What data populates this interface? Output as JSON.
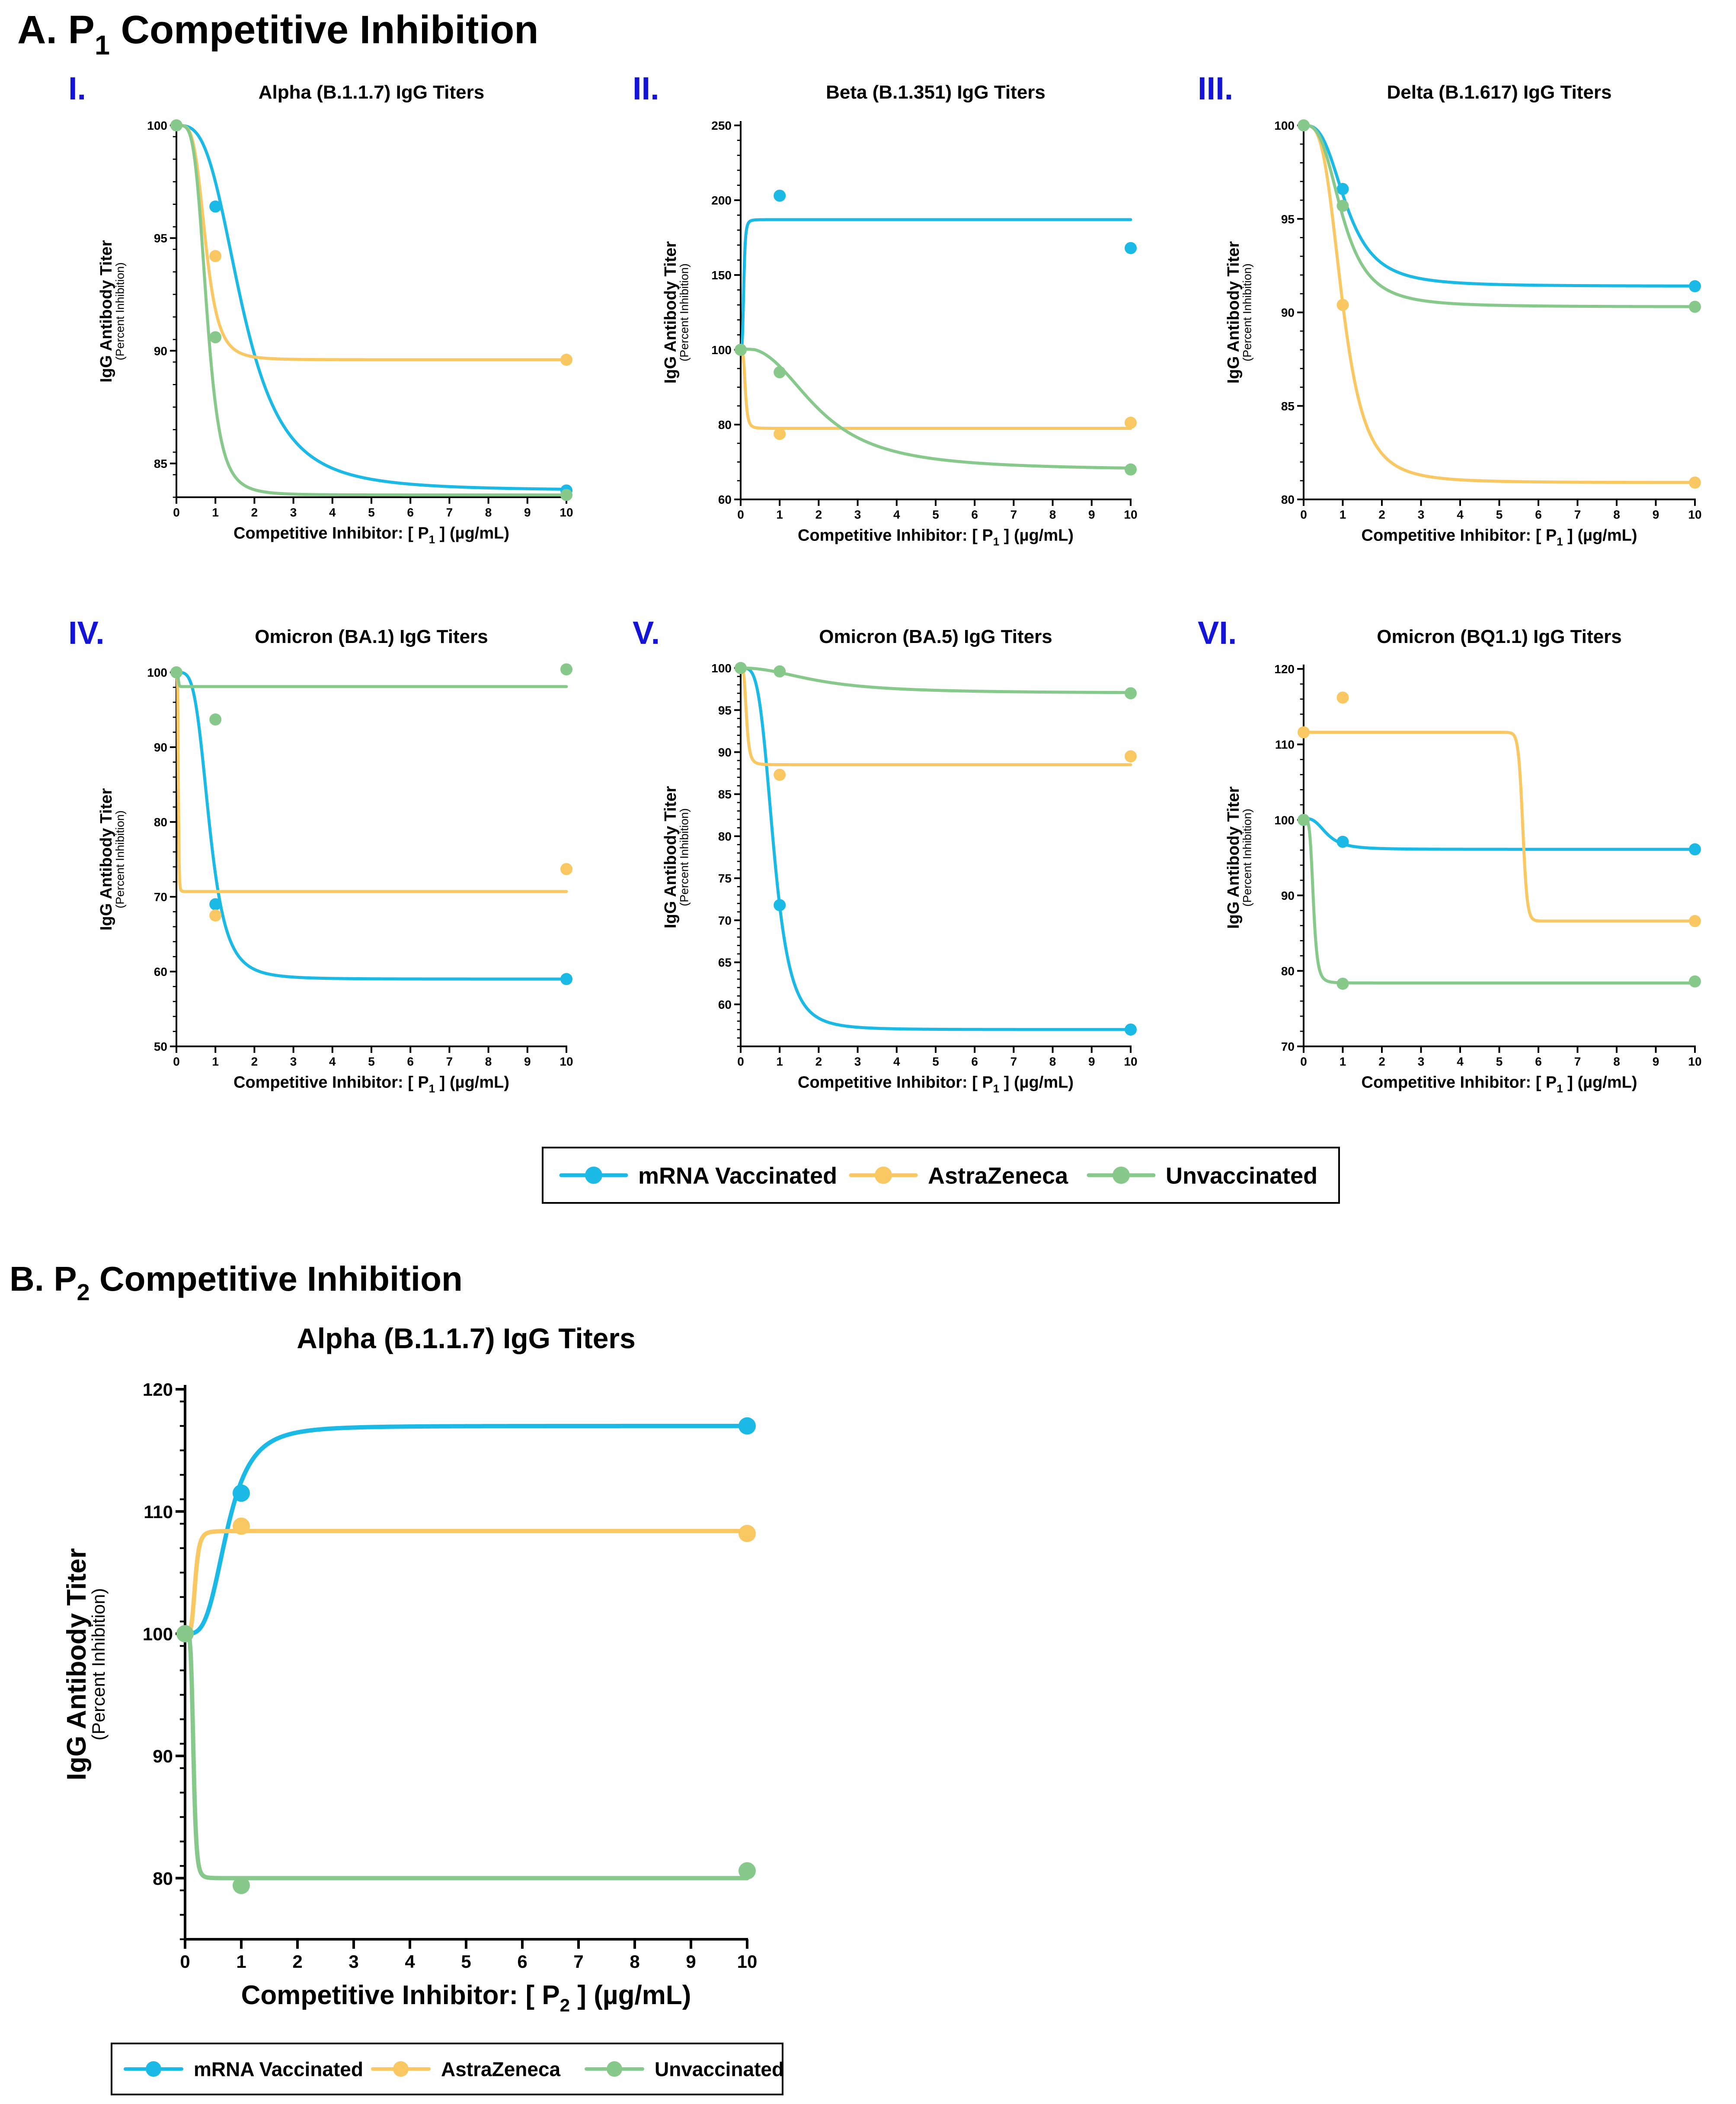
{
  "section_a": {
    "prefix": "A. P",
    "sub": "1",
    "suffix": " Competitive Inhibition"
  },
  "section_b": {
    "prefix": "B. P",
    "sub": "2",
    "suffix": " Competitive Inhibition"
  },
  "colors": {
    "mrna": "#1ab9e6",
    "astra": "#f9c862",
    "unvax": "#86c98a",
    "roman": "#1414d6"
  },
  "legend": {
    "mrna": "mRNA Vaccinated",
    "astra": "AstraZeneca",
    "unvax": "Unvaccinated"
  },
  "y_label": {
    "main": "IgG Antibody Titer",
    "sub": "(Percent Inhibition)"
  },
  "x_label_parts": {
    "p1": [
      "Competitive Inhibitor: [ P",
      "1",
      " ] (µg/mL)"
    ],
    "p2": [
      "Competitive Inhibitor: [ P",
      "2",
      " ] (µg/mL)"
    ]
  },
  "chart_data": [
    {
      "panel": "I.",
      "type": "line",
      "title": "Alpha (B.1.1.7) IgG Titers",
      "xlim": [
        0,
        10
      ],
      "ylim": [
        83.5,
        100
      ],
      "yticks": [
        85,
        90,
        95,
        100
      ],
      "inhibitor": "p1",
      "series": [
        {
          "name": "mRNA Vaccinated",
          "key": "mrna",
          "x": [
            0,
            1,
            10
          ],
          "y": [
            100,
            96.4,
            83.8
          ],
          "fit": {
            "type": "sigmoid",
            "top": 100,
            "bottom": 83.8,
            "ec50": 1.7,
            "hill": 3.2
          }
        },
        {
          "name": "AstraZeneca",
          "key": "astra",
          "x": [
            0,
            1,
            10
          ],
          "y": [
            100,
            94.2,
            89.6
          ],
          "fit": {
            "type": "sigmoid",
            "top": 100,
            "bottom": 89.6,
            "ec50": 0.75,
            "hill": 4.5
          }
        },
        {
          "name": "Unvaccinated",
          "key": "unvax",
          "x": [
            0,
            1,
            10
          ],
          "y": [
            100,
            90.6,
            83.6
          ],
          "fit": {
            "type": "sigmoid",
            "top": 100,
            "bottom": 83.6,
            "ec50": 0.78,
            "hill": 4.5
          }
        }
      ]
    },
    {
      "panel": "II.",
      "type": "line",
      "title": "Beta (B.1.351) IgG Titers",
      "xlim": [
        0,
        10
      ],
      "ylim": [
        60,
        250
      ],
      "yticks": [
        60,
        80,
        100,
        150,
        200,
        250
      ],
      "ybreaks": [
        [
          60,
          0
        ],
        [
          100,
          0.4
        ],
        [
          250,
          1
        ]
      ],
      "inhibitor": "p1",
      "series": [
        {
          "name": "mRNA Vaccinated",
          "key": "mrna",
          "x": [
            0,
            1,
            10
          ],
          "y": [
            100,
            203,
            168
          ],
          "fit": {
            "type": "sigmoid",
            "top": 100,
            "bottom": 187,
            "ec50": 0.08,
            "hill": 4
          }
        },
        {
          "name": "AstraZeneca",
          "key": "astra",
          "x": [
            0,
            1,
            10
          ],
          "y": [
            100,
            77.5,
            80.5
          ],
          "fit": {
            "type": "sigmoid",
            "top": 100,
            "bottom": 79,
            "ec50": 0.12,
            "hill": 4
          }
        },
        {
          "name": "Unvaccinated",
          "key": "unvax",
          "x": [
            0,
            1,
            10
          ],
          "y": [
            100,
            94,
            68
          ],
          "fit": {
            "type": "sigmoid",
            "top": 100.5,
            "bottom": 67.8,
            "ec50": 2.0,
            "hill": 2.5
          }
        }
      ]
    },
    {
      "panel": "III.",
      "type": "line",
      "title": "Delta (B.1.617) IgG Titers",
      "xlim": [
        0,
        10
      ],
      "ylim": [
        80,
        100
      ],
      "yticks": [
        80,
        85,
        90,
        95,
        100
      ],
      "inhibitor": "p1",
      "series": [
        {
          "name": "mRNA Vaccinated",
          "key": "mrna",
          "x": [
            0,
            1,
            10
          ],
          "y": [
            100,
            96.6,
            91.4
          ],
          "fit": {
            "type": "sigmoid",
            "top": 100,
            "bottom": 91.4,
            "ec50": 1.1,
            "hill": 3
          }
        },
        {
          "name": "AstraZeneca",
          "key": "astra",
          "x": [
            0,
            1,
            10
          ],
          "y": [
            100,
            90.4,
            80.9
          ],
          "fit": {
            "type": "sigmoid",
            "top": 100,
            "bottom": 80.9,
            "ec50": 1.0,
            "hill": 3.5
          }
        },
        {
          "name": "Unvaccinated",
          "key": "unvax",
          "x": [
            0,
            1,
            10
          ],
          "y": [
            100,
            95.7,
            90.3
          ],
          "fit": {
            "type": "sigmoid",
            "top": 100,
            "bottom": 90.3,
            "ec50": 1.0,
            "hill": 3
          }
        }
      ]
    },
    {
      "panel": "IV.",
      "type": "line",
      "title": "Omicron (BA.1) IgG Titers",
      "xlim": [
        0,
        10
      ],
      "ylim": [
        50,
        100
      ],
      "yticks": [
        50,
        60,
        70,
        80,
        90,
        100
      ],
      "inhibitor": "p1",
      "series": [
        {
          "name": "mRNA Vaccinated",
          "key": "mrna",
          "x": [
            0,
            1,
            10
          ],
          "y": [
            100,
            69,
            59
          ],
          "fit": {
            "type": "sigmoid",
            "top": 100,
            "bottom": 59,
            "ec50": 0.85,
            "hill": 4
          }
        },
        {
          "name": "AstraZeneca",
          "key": "astra",
          "x": [
            0,
            1,
            10
          ],
          "y": [
            100,
            67.5,
            73.7
          ],
          "fit": {
            "type": "sigmoid",
            "top": 100,
            "bottom": 70.7,
            "ec50": 0.05,
            "hill": 6
          }
        },
        {
          "name": "Unvaccinated",
          "key": "unvax",
          "x": [
            0,
            1,
            10
          ],
          "y": [
            100,
            93.7,
            100.4
          ],
          "fit": {
            "type": "sigmoid",
            "top": 100,
            "bottom": 98.1,
            "ec50": 0.05,
            "hill": 6
          }
        }
      ]
    },
    {
      "panel": "V.",
      "type": "line",
      "title": "Omicron (BA.5) IgG Titers",
      "xlim": [
        0,
        10
      ],
      "ylim": [
        55,
        100
      ],
      "yticks": [
        60,
        65,
        70,
        75,
        80,
        85,
        90,
        95,
        100
      ],
      "inhibitor": "p1",
      "series": [
        {
          "name": "mRNA Vaccinated",
          "key": "mrna",
          "x": [
            0,
            1,
            10
          ],
          "y": [
            100,
            71.8,
            57
          ],
          "fit": {
            "type": "sigmoid",
            "top": 100,
            "bottom": 57,
            "ec50": 0.85,
            "hill": 4
          }
        },
        {
          "name": "AstraZeneca",
          "key": "astra",
          "x": [
            0,
            1,
            10
          ],
          "y": [
            100,
            87.3,
            89.5
          ],
          "fit": {
            "type": "sigmoid",
            "top": 100,
            "bottom": 88.5,
            "ec50": 0.15,
            "hill": 4
          }
        },
        {
          "name": "Unvaccinated",
          "key": "unvax",
          "x": [
            0,
            1,
            10
          ],
          "y": [
            100,
            99.6,
            97
          ],
          "fit": {
            "type": "sigmoid",
            "top": 100,
            "bottom": 97,
            "ec50": 2.0,
            "hill": 2.2
          }
        }
      ]
    },
    {
      "panel": "VI.",
      "type": "line",
      "title": "Omicron (BQ1.1) IgG Titers",
      "xlim": [
        0,
        10
      ],
      "ylim": [
        70,
        120
      ],
      "yticks": [
        70,
        80,
        90,
        100,
        110,
        120
      ],
      "inhibitor": "p1",
      "series": [
        {
          "name": "mRNA Vaccinated",
          "key": "mrna",
          "x": [
            0,
            1,
            10
          ],
          "y": [
            100,
            97.1,
            96.1
          ],
          "fit": {
            "type": "sigmoid",
            "top": 100.2,
            "bottom": 96.1,
            "ec50": 0.6,
            "hill": 3
          }
        },
        {
          "name": "AstraZeneca",
          "key": "astra",
          "x": [
            0,
            1,
            10
          ],
          "y": [
            111.6,
            116.2,
            86.6
          ],
          "fit": {
            "type": "sigmoid",
            "top": 111.6,
            "bottom": 86.6,
            "ec50": 5.6,
            "hill": 100
          }
        },
        {
          "name": "Unvaccinated",
          "key": "unvax",
          "x": [
            0,
            1,
            10
          ],
          "y": [
            100,
            78.3,
            78.6
          ],
          "fit": {
            "type": "sigmoid",
            "top": 100,
            "bottom": 78.4,
            "ec50": 0.25,
            "hill": 5
          }
        }
      ]
    },
    {
      "panel": "",
      "type": "line",
      "title": "Alpha (B.1.1.7) IgG Titers",
      "xlim": [
        0,
        10
      ],
      "ylim": [
        75,
        120
      ],
      "yticks": [
        80,
        90,
        100,
        110,
        120
      ],
      "inhibitor": "p2",
      "series": [
        {
          "name": "mRNA Vaccinated",
          "key": "mrna",
          "x": [
            0,
            1,
            10
          ],
          "y": [
            100,
            111.5,
            117
          ],
          "fit": {
            "type": "sigmoid",
            "top": 100,
            "bottom": 117,
            "ec50": 0.75,
            "hill": 3.5
          }
        },
        {
          "name": "AstraZeneca",
          "key": "astra",
          "x": [
            0,
            1,
            10
          ],
          "y": [
            100,
            108.8,
            108.2
          ],
          "fit": {
            "type": "sigmoid",
            "top": 100,
            "bottom": 108.4,
            "ec50": 0.18,
            "hill": 5
          }
        },
        {
          "name": "Unvaccinated",
          "key": "unvax",
          "x": [
            0,
            1,
            10
          ],
          "y": [
            100,
            79.4,
            80.6
          ],
          "fit": {
            "type": "sigmoid",
            "top": 100,
            "bottom": 80,
            "ec50": 0.15,
            "hill": 6
          }
        }
      ]
    }
  ]
}
